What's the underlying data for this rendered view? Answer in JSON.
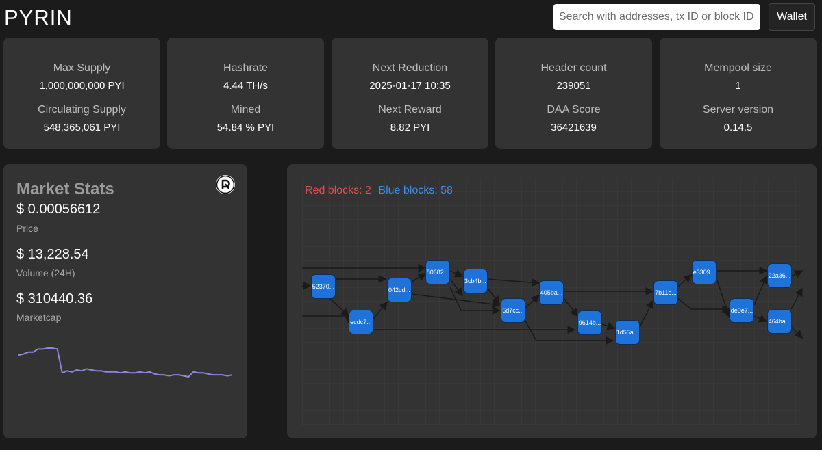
{
  "header": {
    "brand": "PYRIN",
    "search_placeholder": "Search with addresses, tx ID or block ID",
    "wallet_label": "Wallet"
  },
  "stats_cards": [
    {
      "label1": "Max Supply",
      "value1": "1,000,000,000 PYI",
      "label2": "Circulating Supply",
      "value2": "548,365,061 PYI"
    },
    {
      "label1": "Hashrate",
      "value1": "4.44 TH/s",
      "label2": "Mined",
      "value2": "54.84 % PYI"
    },
    {
      "label1": "Next Reduction",
      "value1": "2025-01-17 10:35",
      "label2": "Next Reward",
      "value2": "8.82 PYI"
    },
    {
      "label1": "Header count",
      "value1": "239051",
      "label2": "DAA Score",
      "value2": "36421639"
    },
    {
      "label1": "Mempool size",
      "value1": "1",
      "label2": "Server version",
      "value2": "0.14.5"
    }
  ],
  "market": {
    "title": "Market Stats",
    "logo_icon": "pyrin-logo-icon",
    "price": "$ 0.00056612",
    "price_label": "Price",
    "volume": "$ 13,228.54",
    "volume_label": "Volume (24H)",
    "marketcap": "$ 310440.36",
    "marketcap_label": "Marketcap",
    "sparkline_color": "#8f86e0",
    "sparkline_values": [
      60,
      61,
      63,
      63,
      66,
      66,
      67,
      67,
      66,
      42,
      44,
      43,
      45,
      44,
      46,
      45,
      44,
      44,
      43,
      43,
      43,
      42,
      43,
      42,
      42,
      43,
      42,
      43,
      41,
      40,
      40,
      39,
      40,
      40,
      39,
      38,
      43,
      42,
      42,
      41,
      40,
      40,
      40,
      39,
      40
    ]
  },
  "dag": {
    "red_label": "Red blocks: 2",
    "blue_label": "Blue blocks: 58",
    "red_color": "#d9534f",
    "blue_color": "#3f8ee2",
    "block_color": "#1f73d8",
    "blocks": [
      {
        "id": "b1",
        "label": "52370..."
      },
      {
        "id": "b2",
        "label": "ecdc7..."
      },
      {
        "id": "b3",
        "label": "042cd..."
      },
      {
        "id": "b4",
        "label": "80682..."
      },
      {
        "id": "b5",
        "label": "3cb4b..."
      },
      {
        "id": "b6",
        "label": "5d7cc..."
      },
      {
        "id": "b7",
        "label": "405ba..."
      },
      {
        "id": "b8",
        "label": "9614b..."
      },
      {
        "id": "b9",
        "label": "1d55a..."
      },
      {
        "id": "b10",
        "label": "7b11e..."
      },
      {
        "id": "b11",
        "label": "e3309..."
      },
      {
        "id": "b12",
        "label": "de0e7..."
      },
      {
        "id": "b13",
        "label": "22a36..."
      },
      {
        "id": "b14",
        "label": "464ba..."
      }
    ]
  }
}
